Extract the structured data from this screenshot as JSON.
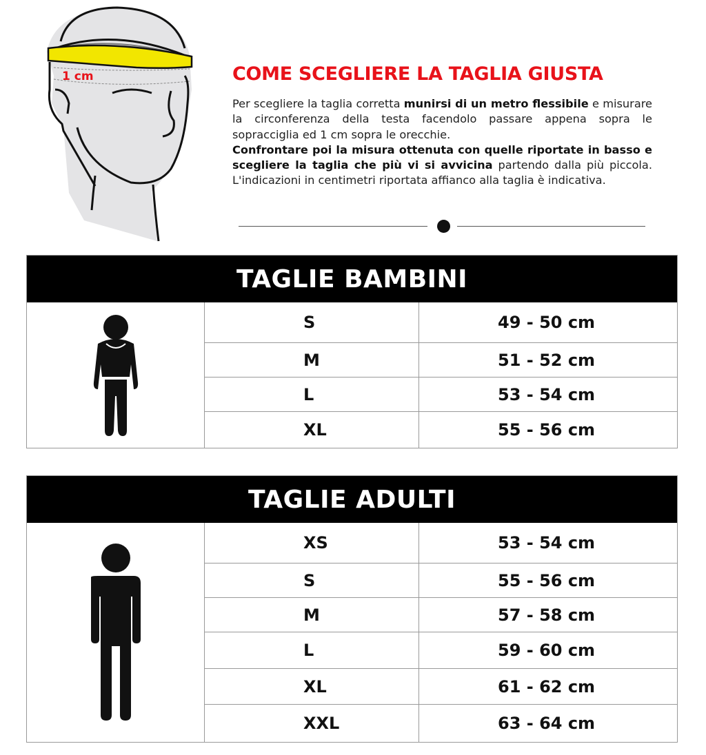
{
  "illustration": {
    "measure_label": "1 cm",
    "tape_color": "#f2e600"
  },
  "title": "COME SCEGLIERE LA TAGLIA GIUSTA",
  "intro": {
    "p1": "Per scegliere la taglia corretta ",
    "p1_bold": "munirsi di un metro flessibile",
    "p2": " e misurare la circonferenza della testa facendolo passare appena sopra le sopracciglia ed 1 cm sopra le orecchie.",
    "p3_bold": "Confrontare poi la misura ottenuta con quelle riportate in basso e scegliere la taglia che più vi si avvicina",
    "p4": " partendo dalla più piccola. L'indicazioni in centimetri riportata affianco alla taglia è indicativa."
  },
  "colors": {
    "accent": "#e8121a",
    "header_bg": "#000000"
  },
  "kids": {
    "title": "TAGLIE BAMBINI",
    "rows": [
      {
        "size": "S",
        "range": "49 - 50 cm"
      },
      {
        "size": "M",
        "range": "51 - 52 cm"
      },
      {
        "size": "L",
        "range": "53 - 54 cm"
      },
      {
        "size": "XL",
        "range": "55 - 56 cm"
      }
    ]
  },
  "adults": {
    "title": "TAGLIE ADULTI",
    "rows": [
      {
        "size": "XS",
        "range": "53 - 54 cm"
      },
      {
        "size": "S",
        "range": "55 - 56 cm"
      },
      {
        "size": "M",
        "range": "57 - 58 cm"
      },
      {
        "size": "L",
        "range": "59 - 60 cm"
      },
      {
        "size": "XL",
        "range": "61 - 62 cm"
      },
      {
        "size": "XXL",
        "range": "63 - 64 cm"
      }
    ]
  }
}
